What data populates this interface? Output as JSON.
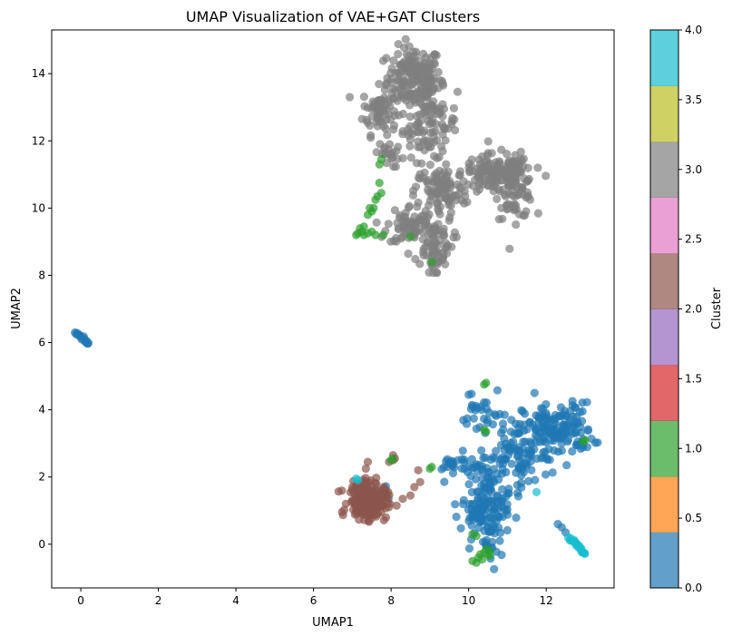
{
  "chart_data": {
    "type": "scatter",
    "title": "UMAP Visualization of VAE+GAT Clusters",
    "xlabel": "UMAP1",
    "ylabel": "UMAP2",
    "xlim": [
      -0.75,
      13.75
    ],
    "ylim": [
      -1.3,
      15.3
    ],
    "xticks": [
      0,
      2,
      4,
      6,
      8,
      10,
      12
    ],
    "yticks": [
      0,
      2,
      4,
      6,
      8,
      10,
      12,
      14
    ],
    "grid": false,
    "colorbar": {
      "label": "Cluster",
      "range": [
        0,
        4
      ],
      "ticks": [
        "0.0",
        "0.5",
        "1.0",
        "1.5",
        "2.0",
        "2.5",
        "3.0",
        "3.5",
        "4.0"
      ],
      "colors": [
        "#1f77b4",
        "#ff7f0e",
        "#2ca02c",
        "#d62728",
        "#9467bd",
        "#8c564b",
        "#e377c2",
        "#7f7f7f",
        "#bcbd22",
        "#17becf"
      ]
    },
    "series": [
      {
        "cluster": 3,
        "color": "#7f7f7f",
        "blobs": [
          {
            "cx": 8.6,
            "cy": 13.9,
            "sx": 0.35,
            "sy": 0.45,
            "n": 160
          },
          {
            "cx": 7.7,
            "cy": 12.9,
            "sx": 0.22,
            "sy": 0.35,
            "n": 70
          },
          {
            "cx": 9.0,
            "cy": 12.5,
            "sx": 0.35,
            "sy": 0.55,
            "n": 110
          },
          {
            "cx": 10.7,
            "cy": 11.0,
            "sx": 0.45,
            "sy": 0.3,
            "n": 130
          },
          {
            "cx": 11.2,
            "cy": 10.6,
            "sx": 0.25,
            "sy": 0.45,
            "n": 80
          },
          {
            "cx": 9.3,
            "cy": 10.5,
            "sx": 0.35,
            "sy": 0.35,
            "n": 90
          },
          {
            "cx": 8.5,
            "cy": 9.5,
            "sx": 0.3,
            "sy": 0.3,
            "n": 70
          },
          {
            "cx": 9.1,
            "cy": 9.0,
            "sx": 0.25,
            "sy": 0.35,
            "n": 60
          },
          {
            "cx": 7.9,
            "cy": 11.6,
            "sx": 0.15,
            "sy": 0.2,
            "n": 20
          },
          {
            "cx": 9.1,
            "cy": 8.3,
            "sx": 0.1,
            "sy": 0.15,
            "n": 15
          }
        ]
      },
      {
        "cluster": 0,
        "color": "#1f77b4",
        "blobs": [
          {
            "cx": 12.3,
            "cy": 3.4,
            "sx": 0.45,
            "sy": 0.4,
            "n": 150
          },
          {
            "cx": 11.2,
            "cy": 2.6,
            "sx": 0.45,
            "sy": 0.45,
            "n": 90
          },
          {
            "cx": 10.5,
            "cy": 1.8,
            "sx": 0.3,
            "sy": 0.35,
            "n": 60
          },
          {
            "cx": 10.4,
            "cy": 0.9,
            "sx": 0.3,
            "sy": 0.35,
            "n": 90
          },
          {
            "cx": 10.4,
            "cy": 3.8,
            "sx": 0.3,
            "sy": 0.3,
            "n": 30
          },
          {
            "cx": 9.6,
            "cy": 2.4,
            "sx": 0.25,
            "sy": 0.12,
            "n": 20
          },
          {
            "cx": 10.6,
            "cy": 0.0,
            "sx": 0.15,
            "sy": 0.3,
            "n": 20
          },
          {
            "cx": 7.8,
            "cy": 1.6,
            "sx": 0.12,
            "sy": 0.1,
            "n": 8
          }
        ],
        "line": {
          "x0": -0.1,
          "y0": 6.3,
          "x1": 0.2,
          "y1": 5.95,
          "n": 18
        },
        "extra": [
          [
            12.3,
            0.6
          ],
          [
            12.4,
            0.5
          ],
          [
            12.5,
            0.35
          ],
          [
            11.7,
            4.5
          ],
          [
            10.0,
            4.45
          ]
        ]
      },
      {
        "cluster": 2,
        "color": "#8c564b",
        "blobs": [
          {
            "cx": 7.4,
            "cy": 1.25,
            "sx": 0.25,
            "sy": 0.25,
            "n": 190
          },
          {
            "cx": 7.2,
            "cy": 1.6,
            "sx": 0.2,
            "sy": 0.18,
            "n": 40
          }
        ],
        "extra": [
          [
            8.1,
            2.55
          ],
          [
            8.05,
            2.5
          ],
          [
            7.95,
            2.45
          ],
          [
            8.05,
            2.65
          ],
          [
            8.7,
            2.2
          ],
          [
            8.75,
            1.85
          ],
          [
            8.5,
            1.45
          ],
          [
            8.3,
            1.35
          ],
          [
            7.35,
            2.25
          ],
          [
            7.4,
            2.45
          ],
          [
            8.6,
            1.7
          ]
        ]
      },
      {
        "cluster": 1,
        "color": "#2ca02c",
        "extra": [
          [
            7.1,
            9.2
          ],
          [
            7.15,
            9.25
          ],
          [
            7.25,
            9.3
          ],
          [
            7.3,
            9.2
          ],
          [
            7.4,
            9.25
          ],
          [
            7.5,
            9.3
          ],
          [
            7.6,
            9.2
          ],
          [
            7.2,
            9.4
          ],
          [
            7.3,
            9.45
          ],
          [
            7.4,
            9.8
          ],
          [
            7.5,
            9.9
          ],
          [
            7.45,
            10.0
          ],
          [
            7.55,
            10.0
          ],
          [
            7.65,
            10.35
          ],
          [
            7.75,
            10.45
          ],
          [
            7.6,
            10.25
          ],
          [
            7.7,
            10.75
          ],
          [
            7.7,
            11.3
          ],
          [
            7.75,
            11.45
          ],
          [
            8.5,
            9.15
          ],
          [
            9.05,
            8.4
          ],
          [
            7.8,
            9.2
          ],
          [
            8.0,
            2.5
          ],
          [
            8.05,
            2.55
          ],
          [
            9.05,
            2.3
          ],
          [
            9.0,
            2.25
          ],
          [
            10.4,
            4.75
          ],
          [
            10.45,
            4.8
          ],
          [
            10.4,
            3.4
          ],
          [
            10.45,
            3.35
          ],
          [
            10.3,
            -0.3
          ],
          [
            10.4,
            -0.25
          ],
          [
            10.5,
            -0.3
          ],
          [
            10.55,
            -0.2
          ],
          [
            10.25,
            -0.4
          ],
          [
            10.35,
            -0.45
          ],
          [
            10.1,
            -0.5
          ],
          [
            10.2,
            -0.55
          ],
          [
            10.45,
            -0.15
          ],
          [
            10.55,
            -0.35
          ],
          [
            13.0,
            3.1
          ],
          [
            12.95,
            3.05
          ],
          [
            10.1,
            0.3
          ],
          [
            10.2,
            0.25
          ]
        ]
      },
      {
        "cluster": 4,
        "color": "#17becf",
        "line": {
          "x0": 12.6,
          "y0": 0.2,
          "x1": 13.0,
          "y1": -0.3,
          "n": 22
        },
        "extra": [
          [
            11.75,
            1.55
          ],
          [
            7.15,
            1.9
          ],
          [
            7.1,
            1.95
          ]
        ]
      }
    ]
  }
}
